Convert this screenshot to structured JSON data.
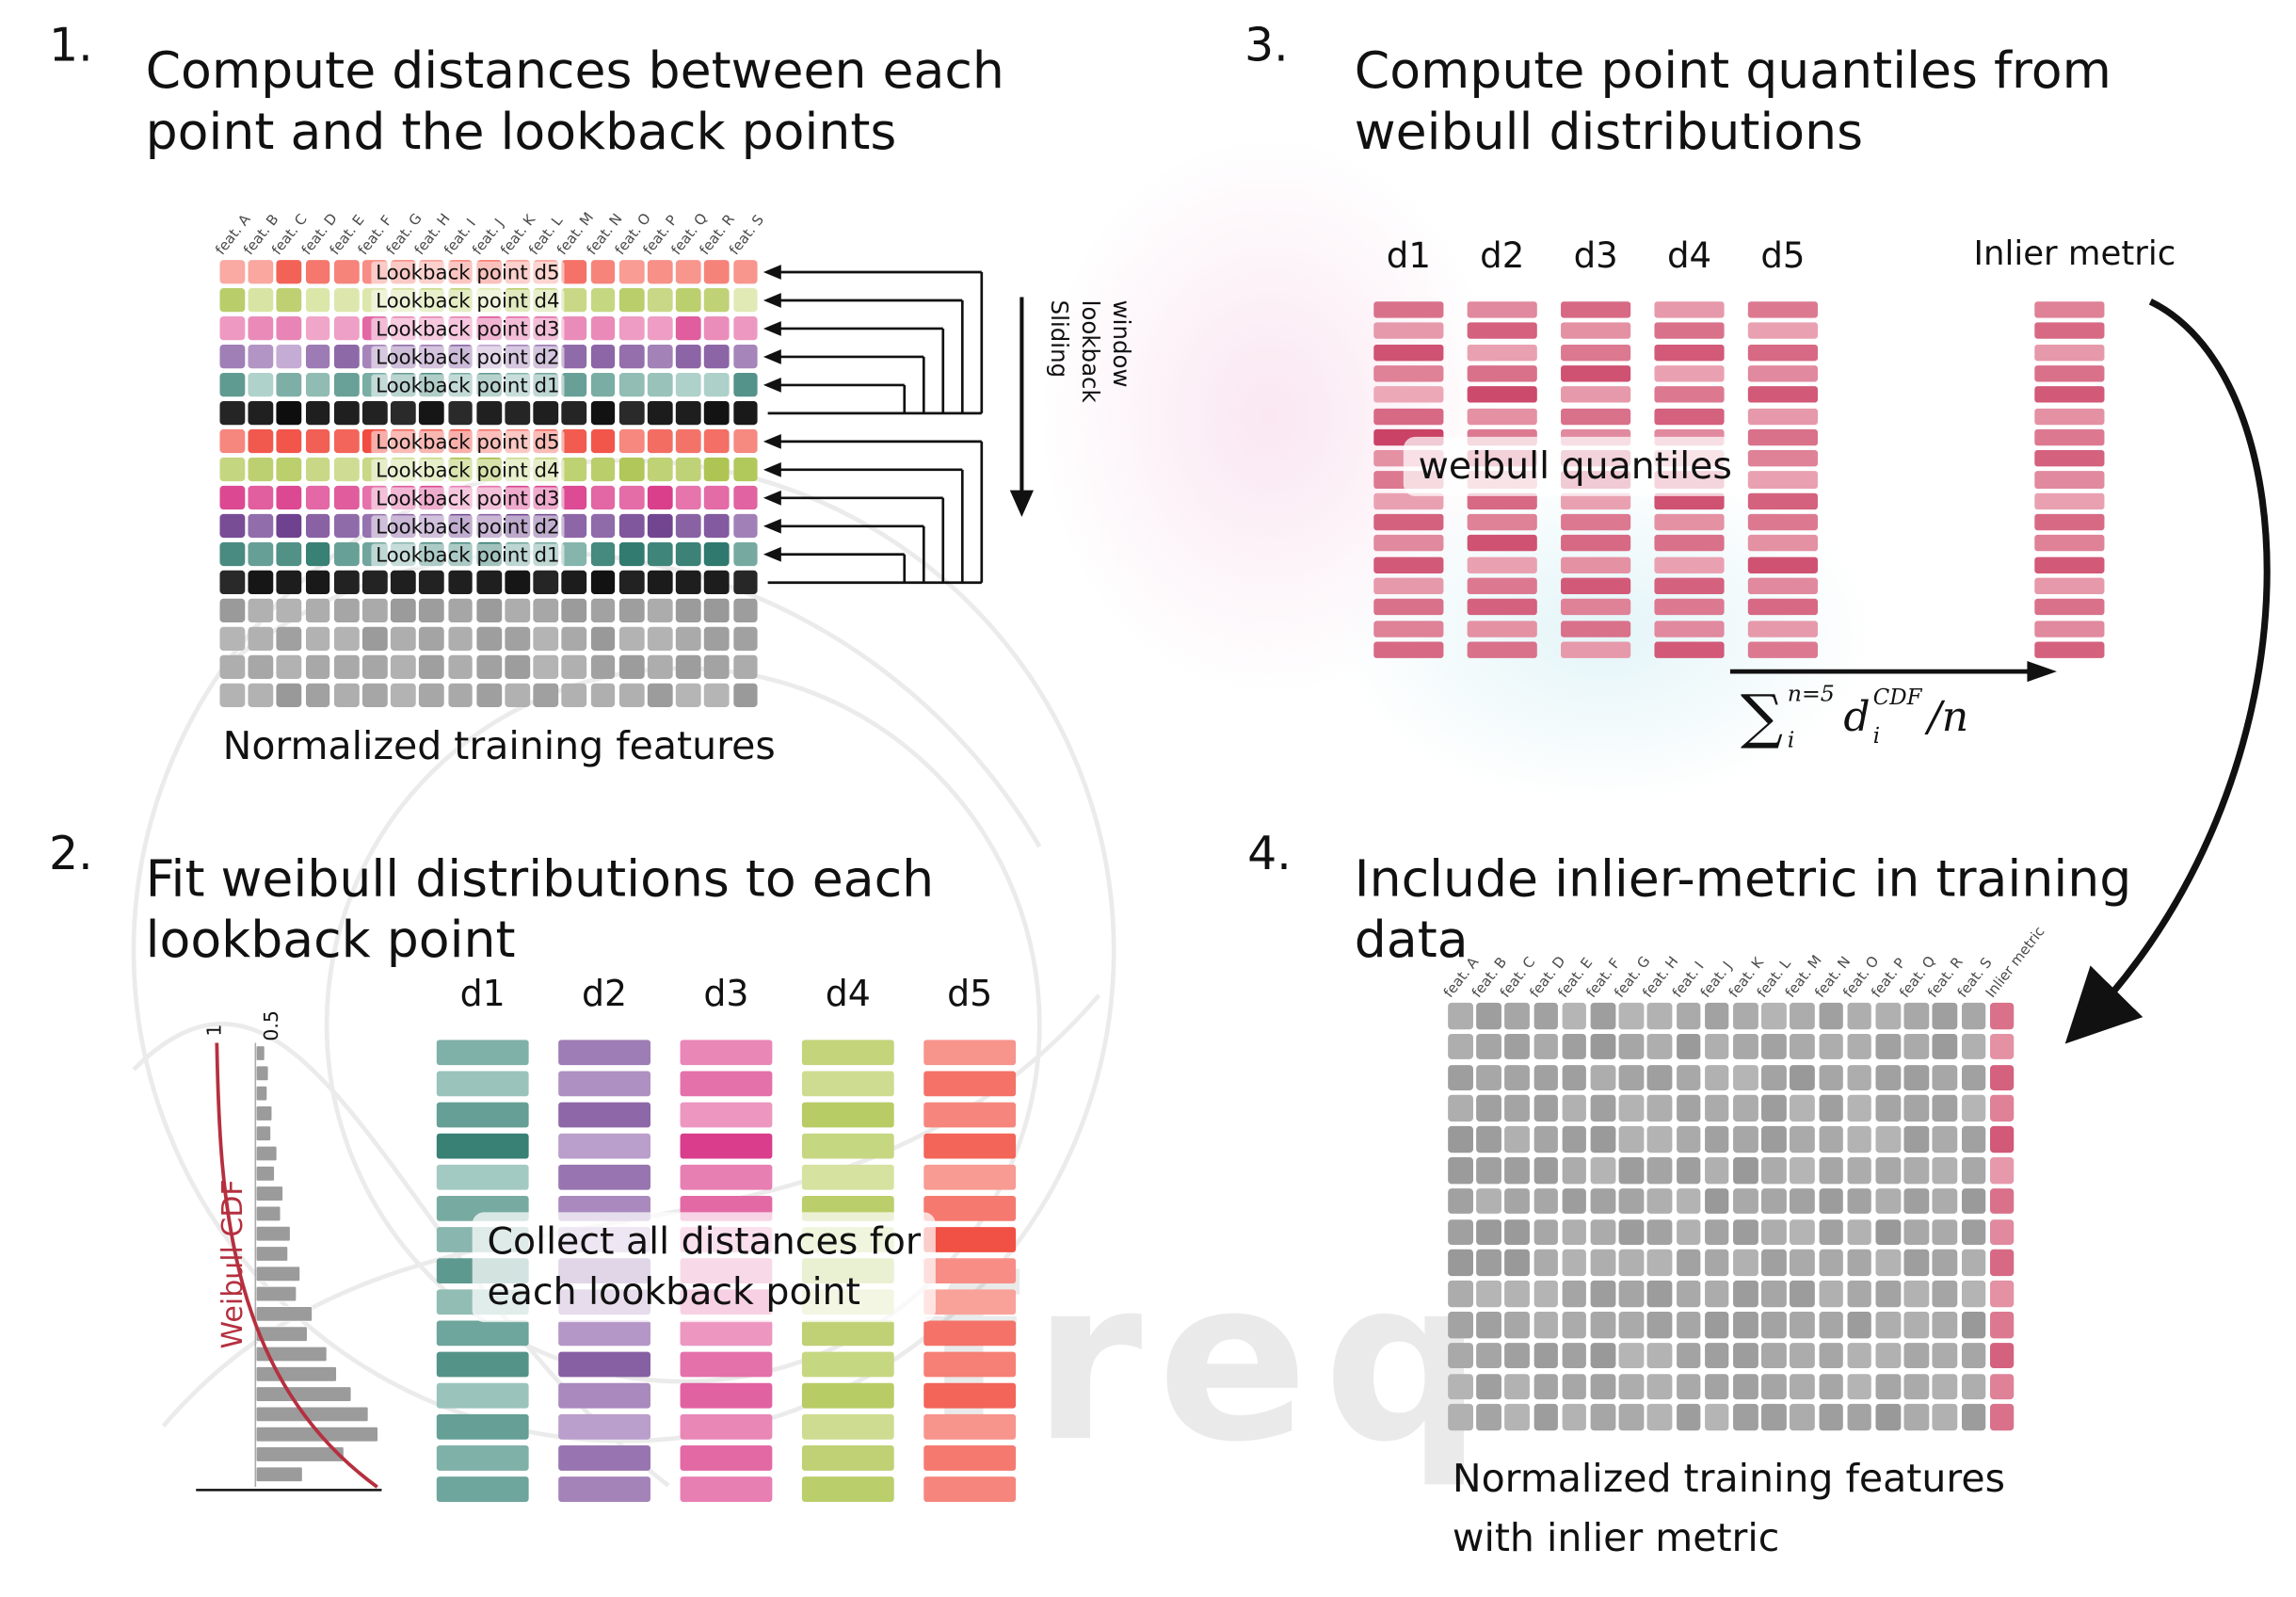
{
  "figure": {
    "watermark_text": "freq"
  },
  "colors": {
    "d1_light": "#cfe8e2",
    "d1_dark": "#1f6e62",
    "d2_light": "#dcc8e6",
    "d2_dark": "#6b3d8c",
    "d3_light": "#f6c2da",
    "d3_dark": "#d62e82",
    "d4_light": "#e9f0c4",
    "d4_dark": "#9cb832",
    "d5_light": "#fcc4be",
    "d5_dark": "#ef3b2e",
    "q_light": "#f6c8d0",
    "q_dark": "#c22a52",
    "gray_light": "#c4c4c4",
    "gray_dark": "#8a8a8a",
    "black_cell": "#171717",
    "line": "#111111",
    "weibull_red": "#b5303f"
  },
  "features": [
    "feat. A",
    "feat. B",
    "feat. C",
    "feat. D",
    "feat. E",
    "feat. F",
    "feat. G",
    "feat. H",
    "feat. I",
    "feat. J",
    "feat. K",
    "feat. L",
    "feat. M",
    "feat. N",
    "feat. O",
    "feat. P",
    "feat. Q",
    "feat. R",
    "feat. S"
  ],
  "p1": {
    "number": "1.",
    "title": "Compute distances between each\npoint and the lookback points",
    "sliding_label": "Sliding\nlookback\nwindow",
    "caption": "Normalized training features",
    "rows": [
      {
        "family": "d5",
        "label": "Lookback point d5",
        "bias": 0.0
      },
      {
        "family": "d4",
        "label": "Lookback point d4",
        "bias": -0.1
      },
      {
        "family": "d3",
        "label": "Lookback point d3",
        "bias": 0.0
      },
      {
        "family": "d2",
        "label": "Lookback point d2",
        "bias": 0.0
      },
      {
        "family": "d1",
        "label": "Lookback point d1",
        "bias": 0.0
      },
      {
        "family": "black"
      },
      {
        "family": "d5",
        "label": "Lookback point d5",
        "bias": 0.15
      },
      {
        "family": "d4",
        "label": "Lookback point d4",
        "bias": 0.15
      },
      {
        "family": "d3",
        "label": "Lookback point d3",
        "bias": 0.2
      },
      {
        "family": "d2",
        "label": "Lookback point d2",
        "bias": 0.25
      },
      {
        "family": "d1",
        "label": "Lookback point d1",
        "bias": 0.2
      },
      {
        "family": "black"
      },
      {
        "family": "gray"
      },
      {
        "family": "gray"
      },
      {
        "family": "gray"
      },
      {
        "family": "gray"
      }
    ]
  },
  "p2": {
    "number": "2.",
    "title": "Fit weibull distributions to each\nlookback point",
    "cdf_label": "Weibull CDF",
    "tick_1": "1",
    "tick_05": "0.5",
    "overlay": "Collect all distances for\neach lookback point",
    "hist": [
      0.07,
      0.1,
      0.09,
      0.13,
      0.12,
      0.17,
      0.15,
      0.22,
      0.2,
      0.28,
      0.26,
      0.36,
      0.33,
      0.46,
      0.42,
      0.58,
      0.66,
      0.78,
      0.92,
      1.0,
      0.72,
      0.38
    ],
    "columns": [
      {
        "label": "d1",
        "family": "d1",
        "bars": [
          0.45,
          0.3,
          0.6,
          0.85,
          0.25,
          0.5,
          0.4,
          0.65,
          0.35,
          0.55,
          0.7,
          0.3,
          0.6,
          0.45,
          0.55
        ]
      },
      {
        "label": "d2",
        "family": "d2",
        "bars": [
          0.55,
          0.4,
          0.7,
          0.3,
          0.6,
          0.45,
          0.25,
          0.65,
          0.5,
          0.35,
          0.75,
          0.45,
          0.3,
          0.6,
          0.5
        ]
      },
      {
        "label": "d3",
        "family": "d3",
        "bars": [
          0.4,
          0.55,
          0.3,
          0.9,
          0.45,
          0.6,
          0.35,
          0.5,
          0.7,
          0.3,
          0.55,
          0.65,
          0.4,
          0.6,
          0.45
        ]
      },
      {
        "label": "d4",
        "family": "d4",
        "bars": [
          0.5,
          0.35,
          0.65,
          0.45,
          0.25,
          0.6,
          0.4,
          0.7,
          0.3,
          0.55,
          0.45,
          0.65,
          0.35,
          0.55,
          0.6
        ]
      },
      {
        "label": "d5",
        "family": "d5",
        "bars": [
          0.35,
          0.6,
          0.45,
          0.7,
          0.3,
          0.55,
          0.85,
          0.4,
          0.25,
          0.6,
          0.5,
          0.7,
          0.35,
          0.55,
          0.45
        ]
      }
    ]
  },
  "p3": {
    "number": "3.",
    "title": "Compute point quantiles from\nweibull distributions",
    "overlay": "weibull quantiles",
    "inlier_label": "Inlier metric",
    "formula": {
      "sigma": "∑",
      "sigma_sup": "n=5",
      "sigma_sub": "i",
      "var": "d",
      "var_sup": "CDF",
      "var_sub": "i",
      "tail": "/n"
    },
    "columns": [
      {
        "label": "d1",
        "bars": [
          0.55,
          0.3,
          0.75,
          0.45,
          0.2,
          0.6,
          0.85,
          0.35,
          0.5,
          0.25,
          0.65,
          0.4,
          0.7,
          0.3,
          0.55,
          0.45,
          0.6
        ]
      },
      {
        "label": "d2",
        "bars": [
          0.4,
          0.65,
          0.25,
          0.55,
          0.8,
          0.35,
          0.5,
          0.7,
          0.3,
          0.6,
          0.45,
          0.75,
          0.25,
          0.5,
          0.65,
          0.35,
          0.55
        ]
      },
      {
        "label": "d3",
        "bars": [
          0.6,
          0.35,
          0.5,
          0.75,
          0.3,
          0.55,
          0.4,
          0.65,
          0.85,
          0.25,
          0.5,
          0.6,
          0.35,
          0.7,
          0.45,
          0.55,
          0.3
        ]
      },
      {
        "label": "d4",
        "bars": [
          0.3,
          0.55,
          0.7,
          0.25,
          0.5,
          0.65,
          0.4,
          0.3,
          0.6,
          0.75,
          0.35,
          0.55,
          0.25,
          0.65,
          0.5,
          0.4,
          0.7
        ]
      },
      {
        "label": "d5",
        "bars": [
          0.5,
          0.25,
          0.6,
          0.4,
          0.7,
          0.3,
          0.55,
          0.45,
          0.25,
          0.65,
          0.5,
          0.35,
          0.75,
          0.4,
          0.6,
          0.3,
          0.5
        ]
      }
    ],
    "inlier_bars": [
      0.45,
      0.6,
      0.3,
      0.55,
      0.7,
      0.35,
      0.5,
      0.65,
      0.4,
      0.25,
      0.6,
      0.45,
      0.7,
      0.3,
      0.55,
      0.4,
      0.65
    ]
  },
  "p4": {
    "number": "4.",
    "title": "Include inlier-metric in training\ndata",
    "inlier_header": "Inlier metric",
    "rows": 14,
    "inlier_col": [
      0.55,
      0.35,
      0.65,
      0.45,
      0.7,
      0.3,
      0.55,
      0.4,
      0.6,
      0.35,
      0.5,
      0.65,
      0.45,
      0.55
    ],
    "caption": "Normalized training features\nwith inlier metric"
  }
}
